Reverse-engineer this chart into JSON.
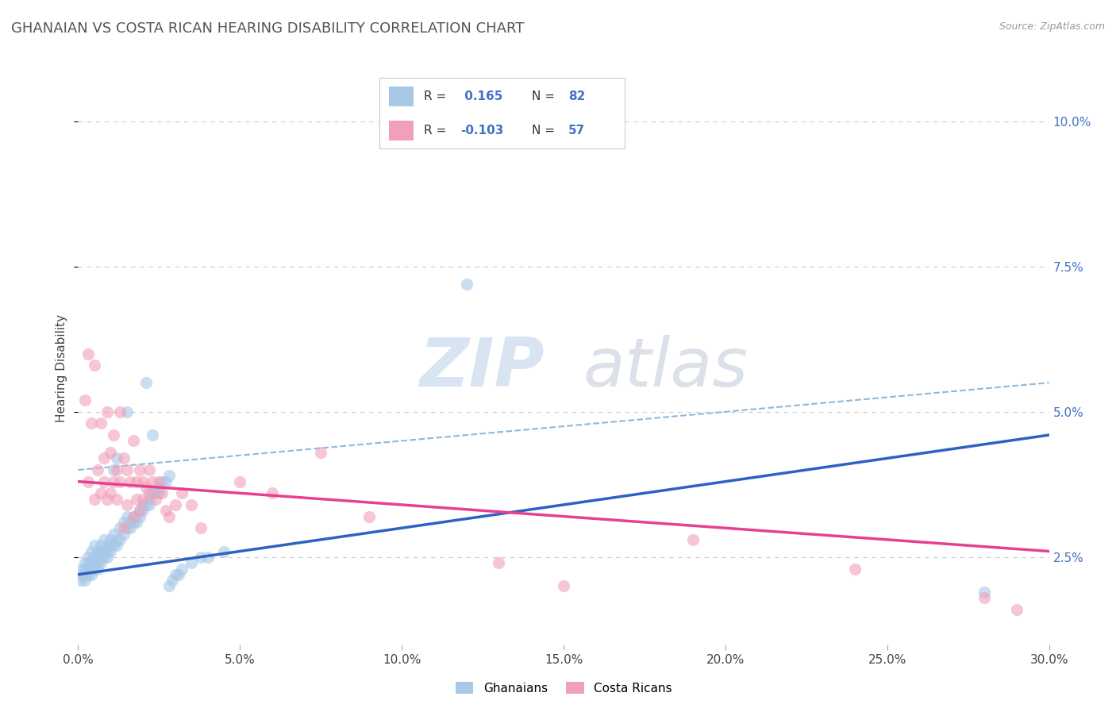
{
  "title": "GHANAIAN VS COSTA RICAN HEARING DISABILITY CORRELATION CHART",
  "source_text": "Source: ZipAtlas.com",
  "ylabel": "Hearing Disability",
  "xlim": [
    0.0,
    0.3
  ],
  "ylim": [
    0.01,
    0.105
  ],
  "xticks": [
    0.0,
    0.05,
    0.1,
    0.15,
    0.2,
    0.25,
    0.3
  ],
  "xtick_labels": [
    "0.0%",
    "5.0%",
    "10.0%",
    "15.0%",
    "20.0%",
    "25.0%",
    "30.0%"
  ],
  "yticks": [
    0.025,
    0.05,
    0.075,
    0.1
  ],
  "ytick_labels": [
    "2.5%",
    "5.0%",
    "7.5%",
    "10.0%"
  ],
  "ghanaian_color": "#a8c8e8",
  "costa_rican_color": "#f0a0b8",
  "ghanaian_line_color": "#3060c0",
  "costa_rican_line_color": "#e84090",
  "dashed_line_color": "#90b8d8",
  "background_color": "#ffffff",
  "grid_color": "#cccccc",
  "legend_label1": "Ghanaians",
  "legend_label2": "Costa Ricans",
  "watermark_zip": "ZIP",
  "watermark_atlas": "atlas",
  "title_fontsize": 13,
  "blue_line": [
    0.0,
    0.022,
    0.3,
    0.046
  ],
  "pink_line": [
    0.0,
    0.038,
    0.3,
    0.026
  ],
  "dashed_line": [
    0.0,
    0.04,
    0.3,
    0.055
  ],
  "ghanaian_points": [
    [
      0.001,
      0.022
    ],
    [
      0.001,
      0.023
    ],
    [
      0.001,
      0.021
    ],
    [
      0.002,
      0.023
    ],
    [
      0.002,
      0.022
    ],
    [
      0.002,
      0.024
    ],
    [
      0.002,
      0.021
    ],
    [
      0.003,
      0.024
    ],
    [
      0.003,
      0.023
    ],
    [
      0.003,
      0.022
    ],
    [
      0.003,
      0.025
    ],
    [
      0.004,
      0.024
    ],
    [
      0.004,
      0.023
    ],
    [
      0.004,
      0.026
    ],
    [
      0.004,
      0.022
    ],
    [
      0.005,
      0.025
    ],
    [
      0.005,
      0.024
    ],
    [
      0.005,
      0.023
    ],
    [
      0.005,
      0.027
    ],
    [
      0.006,
      0.025
    ],
    [
      0.006,
      0.024
    ],
    [
      0.006,
      0.026
    ],
    [
      0.006,
      0.023
    ],
    [
      0.007,
      0.026
    ],
    [
      0.007,
      0.025
    ],
    [
      0.007,
      0.027
    ],
    [
      0.007,
      0.024
    ],
    [
      0.008,
      0.026
    ],
    [
      0.008,
      0.025
    ],
    [
      0.008,
      0.028
    ],
    [
      0.009,
      0.027
    ],
    [
      0.009,
      0.026
    ],
    [
      0.009,
      0.025
    ],
    [
      0.01,
      0.027
    ],
    [
      0.01,
      0.026
    ],
    [
      0.01,
      0.028
    ],
    [
      0.011,
      0.027
    ],
    [
      0.011,
      0.029
    ],
    [
      0.011,
      0.04
    ],
    [
      0.012,
      0.028
    ],
    [
      0.012,
      0.027
    ],
    [
      0.012,
      0.042
    ],
    [
      0.013,
      0.028
    ],
    [
      0.013,
      0.03
    ],
    [
      0.014,
      0.029
    ],
    [
      0.014,
      0.031
    ],
    [
      0.015,
      0.03
    ],
    [
      0.015,
      0.032
    ],
    [
      0.015,
      0.05
    ],
    [
      0.016,
      0.031
    ],
    [
      0.016,
      0.03
    ],
    [
      0.017,
      0.032
    ],
    [
      0.017,
      0.031
    ],
    [
      0.018,
      0.032
    ],
    [
      0.018,
      0.031
    ],
    [
      0.019,
      0.033
    ],
    [
      0.019,
      0.032
    ],
    [
      0.02,
      0.034
    ],
    [
      0.02,
      0.033
    ],
    [
      0.021,
      0.034
    ],
    [
      0.021,
      0.055
    ],
    [
      0.022,
      0.035
    ],
    [
      0.022,
      0.034
    ],
    [
      0.023,
      0.036
    ],
    [
      0.023,
      0.046
    ],
    [
      0.024,
      0.036
    ],
    [
      0.025,
      0.037
    ],
    [
      0.025,
      0.036
    ],
    [
      0.026,
      0.038
    ],
    [
      0.027,
      0.038
    ],
    [
      0.028,
      0.039
    ],
    [
      0.028,
      0.02
    ],
    [
      0.029,
      0.021
    ],
    [
      0.03,
      0.022
    ],
    [
      0.031,
      0.022
    ],
    [
      0.032,
      0.023
    ],
    [
      0.035,
      0.024
    ],
    [
      0.038,
      0.025
    ],
    [
      0.04,
      0.025
    ],
    [
      0.045,
      0.026
    ],
    [
      0.12,
      0.072
    ],
    [
      0.28,
      0.019
    ]
  ],
  "costa_rican_points": [
    [
      0.002,
      0.052
    ],
    [
      0.003,
      0.06
    ],
    [
      0.003,
      0.038
    ],
    [
      0.004,
      0.048
    ],
    [
      0.005,
      0.058
    ],
    [
      0.005,
      0.035
    ],
    [
      0.006,
      0.04
    ],
    [
      0.007,
      0.036
    ],
    [
      0.007,
      0.048
    ],
    [
      0.008,
      0.042
    ],
    [
      0.008,
      0.038
    ],
    [
      0.009,
      0.035
    ],
    [
      0.009,
      0.05
    ],
    [
      0.01,
      0.043
    ],
    [
      0.01,
      0.036
    ],
    [
      0.011,
      0.038
    ],
    [
      0.011,
      0.046
    ],
    [
      0.012,
      0.04
    ],
    [
      0.012,
      0.035
    ],
    [
      0.013,
      0.05
    ],
    [
      0.013,
      0.038
    ],
    [
      0.014,
      0.042
    ],
    [
      0.014,
      0.03
    ],
    [
      0.015,
      0.04
    ],
    [
      0.015,
      0.034
    ],
    [
      0.016,
      0.038
    ],
    [
      0.017,
      0.045
    ],
    [
      0.017,
      0.032
    ],
    [
      0.018,
      0.038
    ],
    [
      0.018,
      0.035
    ],
    [
      0.019,
      0.04
    ],
    [
      0.019,
      0.033
    ],
    [
      0.02,
      0.038
    ],
    [
      0.02,
      0.035
    ],
    [
      0.021,
      0.037
    ],
    [
      0.022,
      0.036
    ],
    [
      0.022,
      0.04
    ],
    [
      0.023,
      0.038
    ],
    [
      0.024,
      0.035
    ],
    [
      0.025,
      0.038
    ],
    [
      0.026,
      0.036
    ],
    [
      0.027,
      0.033
    ],
    [
      0.028,
      0.032
    ],
    [
      0.03,
      0.034
    ],
    [
      0.032,
      0.036
    ],
    [
      0.035,
      0.034
    ],
    [
      0.038,
      0.03
    ],
    [
      0.05,
      0.038
    ],
    [
      0.06,
      0.036
    ],
    [
      0.075,
      0.043
    ],
    [
      0.09,
      0.032
    ],
    [
      0.13,
      0.024
    ],
    [
      0.15,
      0.02
    ],
    [
      0.19,
      0.028
    ],
    [
      0.24,
      0.023
    ],
    [
      0.28,
      0.018
    ],
    [
      0.29,
      0.016
    ]
  ]
}
